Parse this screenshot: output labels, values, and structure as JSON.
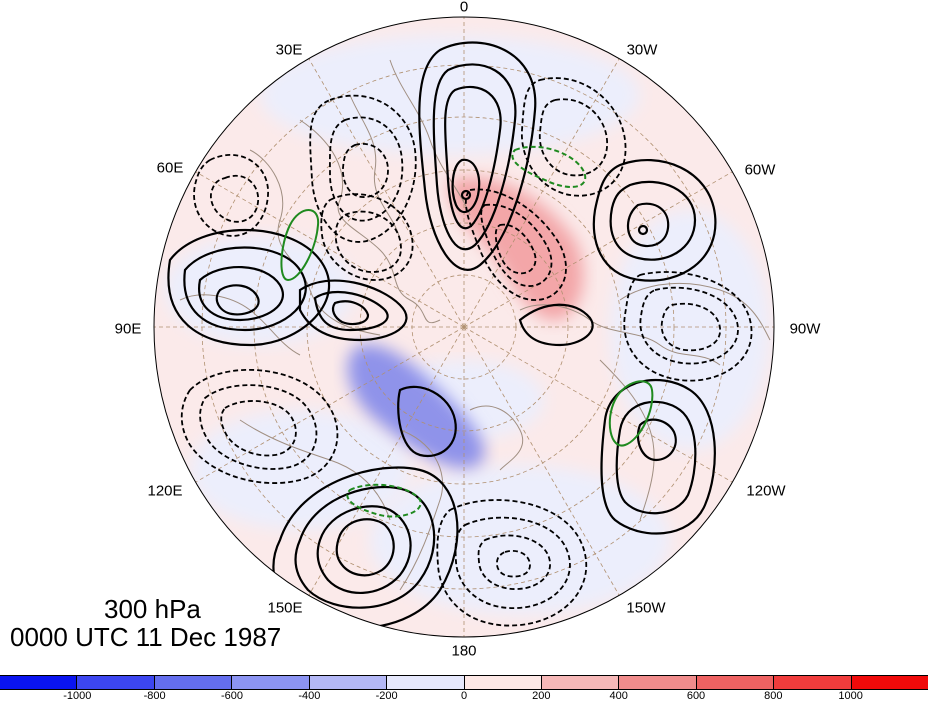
{
  "title": {
    "level": "300 hPa",
    "time": "0000 UTC 11 Dec 1987"
  },
  "longitude_labels": [
    {
      "id": "lon-0",
      "text": "0"
    },
    {
      "id": "lon-30w",
      "text": "30W"
    },
    {
      "id": "lon-60w",
      "text": "60W"
    },
    {
      "id": "lon-90w",
      "text": "90W"
    },
    {
      "id": "lon-120w",
      "text": "120W"
    },
    {
      "id": "lon-150w",
      "text": "150W"
    },
    {
      "id": "lon-180",
      "text": "180"
    },
    {
      "id": "lon-150e",
      "text": "150E"
    },
    {
      "id": "lon-120e",
      "text": "120E"
    },
    {
      "id": "lon-90e",
      "text": "90E"
    },
    {
      "id": "lon-60e",
      "text": "60E"
    },
    {
      "id": "lon-30e",
      "text": "30E"
    }
  ],
  "colorbar": {
    "colors": [
      "#0a14f0",
      "#3c46f0",
      "#646eee",
      "#8c94f2",
      "#b4b8f6",
      "#e6e8fc",
      "#fde8e6",
      "#f6b8b8",
      "#f08c8c",
      "#ee6262",
      "#f03c3c",
      "#f00a0a"
    ],
    "ticks": [
      "-1000",
      "-800",
      "-600",
      "-400",
      "-200",
      "0",
      "200",
      "400",
      "600",
      "800",
      "1000"
    ]
  },
  "map": {
    "projection": "north polar stereographic",
    "background_colors": {
      "positive_light": "#fbe9e9",
      "negative_light": "#ecedfb",
      "strong_positive": "#f3a6a8",
      "strong_negative": "#8f93ea"
    },
    "coastline_color": "#a08f82",
    "grid_color": "#b09070",
    "positive_contour_color": "#000000",
    "negative_contour_style": "dashed",
    "green_contour_color": "#1f8a1f"
  }
}
